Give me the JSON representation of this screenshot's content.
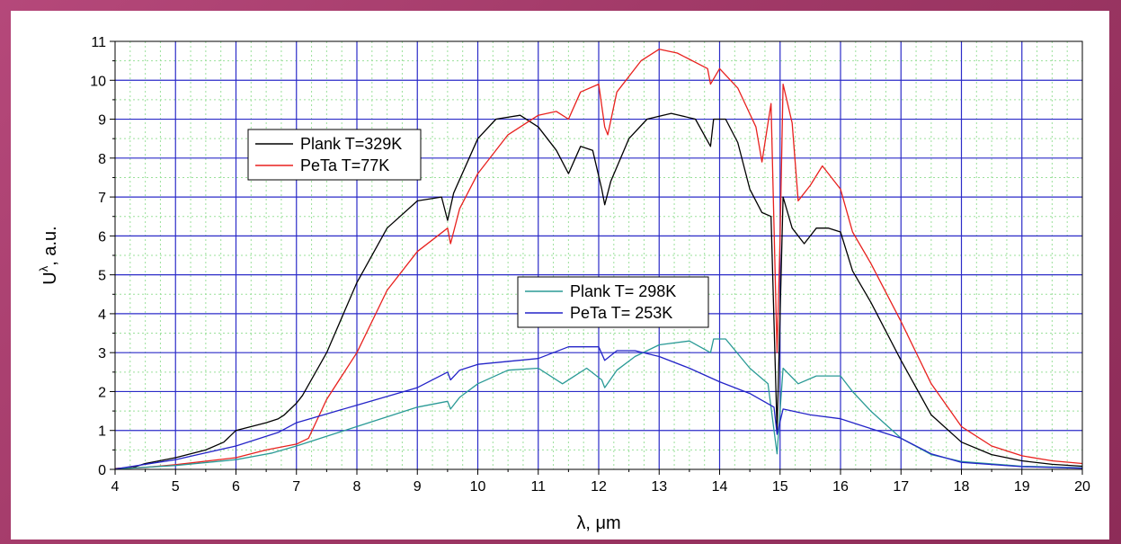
{
  "chart_data": {
    "type": "line",
    "title": "",
    "xlabel": "λ, μm",
    "ylabel": "U",
    "ylabel_superscript": "λ",
    "ylabel_suffix": ", a.u.",
    "xlim": [
      4,
      20
    ],
    "ylim": [
      0,
      11
    ],
    "xticks": [
      4,
      5,
      6,
      7,
      8,
      9,
      10,
      11,
      12,
      13,
      14,
      15,
      16,
      17,
      18,
      19,
      20
    ],
    "yticks": [
      0,
      1,
      2,
      3,
      4,
      5,
      6,
      7,
      8,
      9,
      10,
      11
    ],
    "grid": true,
    "grid_major_color": "#2b2bc8",
    "grid_minor_color": "#9be09b",
    "legends": [
      {
        "placement": "upper-left",
        "entries": [
          "Plank T=329K",
          "PeTa T=77K"
        ]
      },
      {
        "placement": "center",
        "entries": [
          "Plank T= 298K",
          "PeTa T= 253K"
        ]
      }
    ],
    "series": [
      {
        "name": "Plank T=329K",
        "color": "#000000",
        "points": [
          [
            4,
            0.02
          ],
          [
            4.3,
            0.05
          ],
          [
            4.5,
            0.15
          ],
          [
            5,
            0.3
          ],
          [
            5.5,
            0.5
          ],
          [
            5.8,
            0.7
          ],
          [
            6,
            1.0
          ],
          [
            6.5,
            1.2
          ],
          [
            6.7,
            1.3
          ],
          [
            6.8,
            1.4
          ],
          [
            7,
            1.7
          ],
          [
            7.1,
            1.9
          ],
          [
            7.5,
            3.0
          ],
          [
            8,
            4.8
          ],
          [
            8.5,
            6.2
          ],
          [
            9,
            6.9
          ],
          [
            9.4,
            7.0
          ],
          [
            9.5,
            6.4
          ],
          [
            9.6,
            7.1
          ],
          [
            10,
            8.5
          ],
          [
            10.3,
            9.0
          ],
          [
            10.7,
            9.1
          ],
          [
            11,
            8.8
          ],
          [
            11.3,
            8.2
          ],
          [
            11.5,
            7.6
          ],
          [
            11.7,
            8.3
          ],
          [
            11.9,
            8.2
          ],
          [
            12.05,
            7.2
          ],
          [
            12.1,
            6.8
          ],
          [
            12.2,
            7.4
          ],
          [
            12.5,
            8.5
          ],
          [
            12.8,
            9.0
          ],
          [
            13.2,
            9.15
          ],
          [
            13.6,
            9.0
          ],
          [
            13.85,
            8.3
          ],
          [
            13.9,
            9.0
          ],
          [
            14.1,
            9.0
          ],
          [
            14.3,
            8.4
          ],
          [
            14.5,
            7.2
          ],
          [
            14.7,
            6.6
          ],
          [
            14.85,
            6.5
          ],
          [
            14.95,
            1.0
          ],
          [
            15.0,
            4.0
          ],
          [
            15.05,
            7.0
          ],
          [
            15.2,
            6.2
          ],
          [
            15.4,
            5.8
          ],
          [
            15.6,
            6.2
          ],
          [
            15.8,
            6.2
          ],
          [
            16,
            6.1
          ],
          [
            16.2,
            5.1
          ],
          [
            16.5,
            4.3
          ],
          [
            17,
            2.8
          ],
          [
            17.5,
            1.4
          ],
          [
            18,
            0.7
          ],
          [
            18.5,
            0.38
          ],
          [
            19,
            0.22
          ],
          [
            19.5,
            0.13
          ],
          [
            20,
            0.08
          ]
        ]
      },
      {
        "name": "PeTa T=77K",
        "color": "#e8211e",
        "points": [
          [
            4,
            0.02
          ],
          [
            4.5,
            0.05
          ],
          [
            5,
            0.12
          ],
          [
            6,
            0.3
          ],
          [
            6.5,
            0.5
          ],
          [
            7,
            0.65
          ],
          [
            7.2,
            0.8
          ],
          [
            7.5,
            1.8
          ],
          [
            8,
            3.0
          ],
          [
            8.5,
            4.6
          ],
          [
            9,
            5.6
          ],
          [
            9.5,
            6.2
          ],
          [
            9.55,
            5.8
          ],
          [
            9.7,
            6.7
          ],
          [
            10,
            7.6
          ],
          [
            10.5,
            8.6
          ],
          [
            11,
            9.1
          ],
          [
            11.3,
            9.2
          ],
          [
            11.5,
            9.0
          ],
          [
            11.7,
            9.7
          ],
          [
            12,
            9.9
          ],
          [
            12.1,
            8.8
          ],
          [
            12.15,
            8.6
          ],
          [
            12.3,
            9.7
          ],
          [
            12.7,
            10.5
          ],
          [
            13,
            10.8
          ],
          [
            13.3,
            10.7
          ],
          [
            13.8,
            10.3
          ],
          [
            13.85,
            9.9
          ],
          [
            14,
            10.3
          ],
          [
            14.3,
            9.8
          ],
          [
            14.6,
            8.8
          ],
          [
            14.7,
            7.9
          ],
          [
            14.85,
            9.4
          ],
          [
            14.95,
            3.0
          ],
          [
            15.0,
            6.0
          ],
          [
            15.05,
            9.9
          ],
          [
            15.2,
            8.9
          ],
          [
            15.3,
            6.9
          ],
          [
            15.5,
            7.3
          ],
          [
            15.7,
            7.8
          ],
          [
            16,
            7.2
          ],
          [
            16.2,
            6.1
          ],
          [
            16.5,
            5.3
          ],
          [
            17,
            3.8
          ],
          [
            17.5,
            2.2
          ],
          [
            18,
            1.1
          ],
          [
            18.5,
            0.6
          ],
          [
            19,
            0.35
          ],
          [
            19.5,
            0.22
          ],
          [
            20,
            0.15
          ]
        ]
      },
      {
        "name": "Plank T= 298K",
        "color": "#2a9a96",
        "points": [
          [
            4,
            0.01
          ],
          [
            5,
            0.1
          ],
          [
            6,
            0.25
          ],
          [
            6.6,
            0.42
          ],
          [
            7,
            0.6
          ],
          [
            8,
            1.1
          ],
          [
            9,
            1.6
          ],
          [
            9.5,
            1.75
          ],
          [
            9.55,
            1.55
          ],
          [
            9.7,
            1.85
          ],
          [
            10,
            2.2
          ],
          [
            10.5,
            2.55
          ],
          [
            11,
            2.6
          ],
          [
            11.4,
            2.2
          ],
          [
            11.8,
            2.6
          ],
          [
            12.05,
            2.3
          ],
          [
            12.1,
            2.1
          ],
          [
            12.3,
            2.55
          ],
          [
            12.6,
            2.9
          ],
          [
            13,
            3.2
          ],
          [
            13.5,
            3.3
          ],
          [
            13.85,
            3.0
          ],
          [
            13.9,
            3.35
          ],
          [
            14.1,
            3.35
          ],
          [
            14.5,
            2.6
          ],
          [
            14.8,
            2.2
          ],
          [
            14.95,
            0.4
          ],
          [
            15.05,
            2.6
          ],
          [
            15.3,
            2.2
          ],
          [
            15.6,
            2.4
          ],
          [
            16,
            2.4
          ],
          [
            16.2,
            2.0
          ],
          [
            16.5,
            1.5
          ],
          [
            17,
            0.8
          ],
          [
            17.5,
            0.38
          ],
          [
            18,
            0.2
          ],
          [
            19,
            0.08
          ],
          [
            20,
            0.04
          ]
        ]
      },
      {
        "name": "PeTa T= 253K",
        "color": "#2424c8",
        "points": [
          [
            4,
            0.01
          ],
          [
            5,
            0.25
          ],
          [
            6,
            0.6
          ],
          [
            6.7,
            0.95
          ],
          [
            7,
            1.2
          ],
          [
            8,
            1.65
          ],
          [
            9,
            2.1
          ],
          [
            9.5,
            2.5
          ],
          [
            9.55,
            2.3
          ],
          [
            9.7,
            2.55
          ],
          [
            10,
            2.7
          ],
          [
            11,
            2.85
          ],
          [
            11.5,
            3.15
          ],
          [
            12,
            3.15
          ],
          [
            12.1,
            2.8
          ],
          [
            12.3,
            3.05
          ],
          [
            12.6,
            3.05
          ],
          [
            13,
            2.9
          ],
          [
            13.5,
            2.6
          ],
          [
            14,
            2.25
          ],
          [
            14.5,
            1.95
          ],
          [
            14.9,
            1.6
          ],
          [
            14.95,
            0.9
          ],
          [
            15.05,
            1.55
          ],
          [
            15.5,
            1.4
          ],
          [
            16,
            1.3
          ],
          [
            16.5,
            1.05
          ],
          [
            17,
            0.8
          ],
          [
            17.5,
            0.4
          ],
          [
            18,
            0.18
          ],
          [
            19,
            0.07
          ],
          [
            20,
            0.03
          ]
        ]
      }
    ]
  }
}
